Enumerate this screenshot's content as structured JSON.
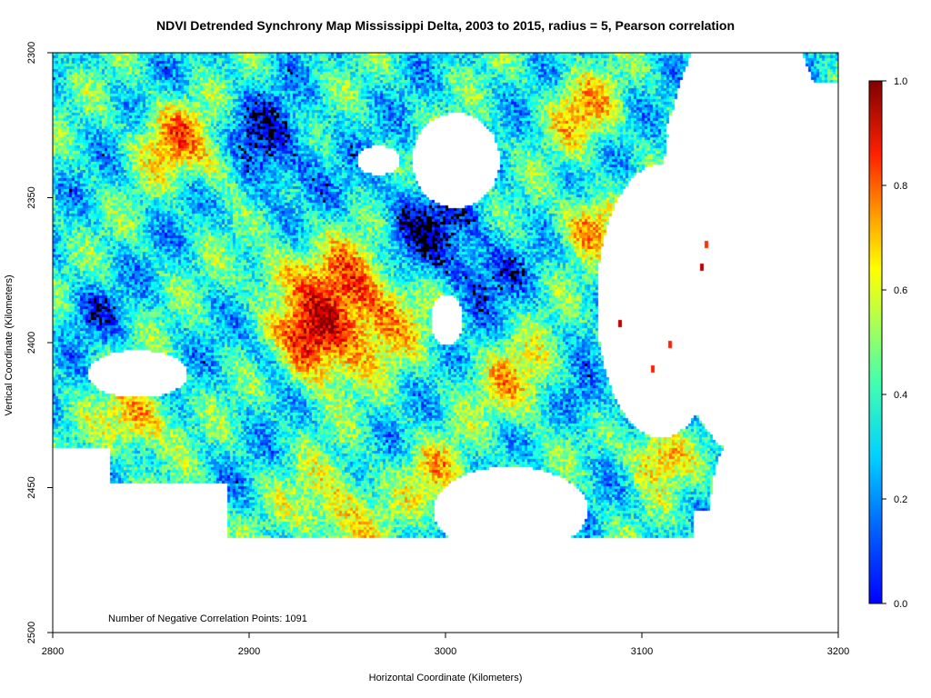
{
  "chart_data": {
    "type": "heatmap",
    "title": "NDVI Detrended Synchrony Map Mississippi Delta, 2003 to 2015, radius = 5, Pearson correlation",
    "xlabel": "Horizontal Coordinate (Kilometers)",
    "ylabel": "Vertical Coordinate (Kilometers)",
    "xlim": [
      2800,
      3200
    ],
    "ylim": [
      2500,
      2300
    ],
    "x_ticks": [
      "2800",
      "2900",
      "3000",
      "3100",
      "3200"
    ],
    "y_ticks": [
      "2300",
      "2350",
      "2400",
      "2450",
      "2500"
    ],
    "annotation": "Number of Negative Correlation Points: 1091",
    "colorbar": {
      "range": [
        0.0,
        1.0
      ],
      "ticks": [
        "0.0",
        "0.2",
        "0.4",
        "0.6",
        "0.8",
        "1.0"
      ],
      "palette": [
        "#0000ff",
        "#0080ff",
        "#00ffff",
        "#80ff80",
        "#ffff00",
        "#ff8000",
        "#ff0000",
        "#800000"
      ],
      "negative_color": "#000000"
    },
    "negative_points": 1091,
    "grid": false
  }
}
